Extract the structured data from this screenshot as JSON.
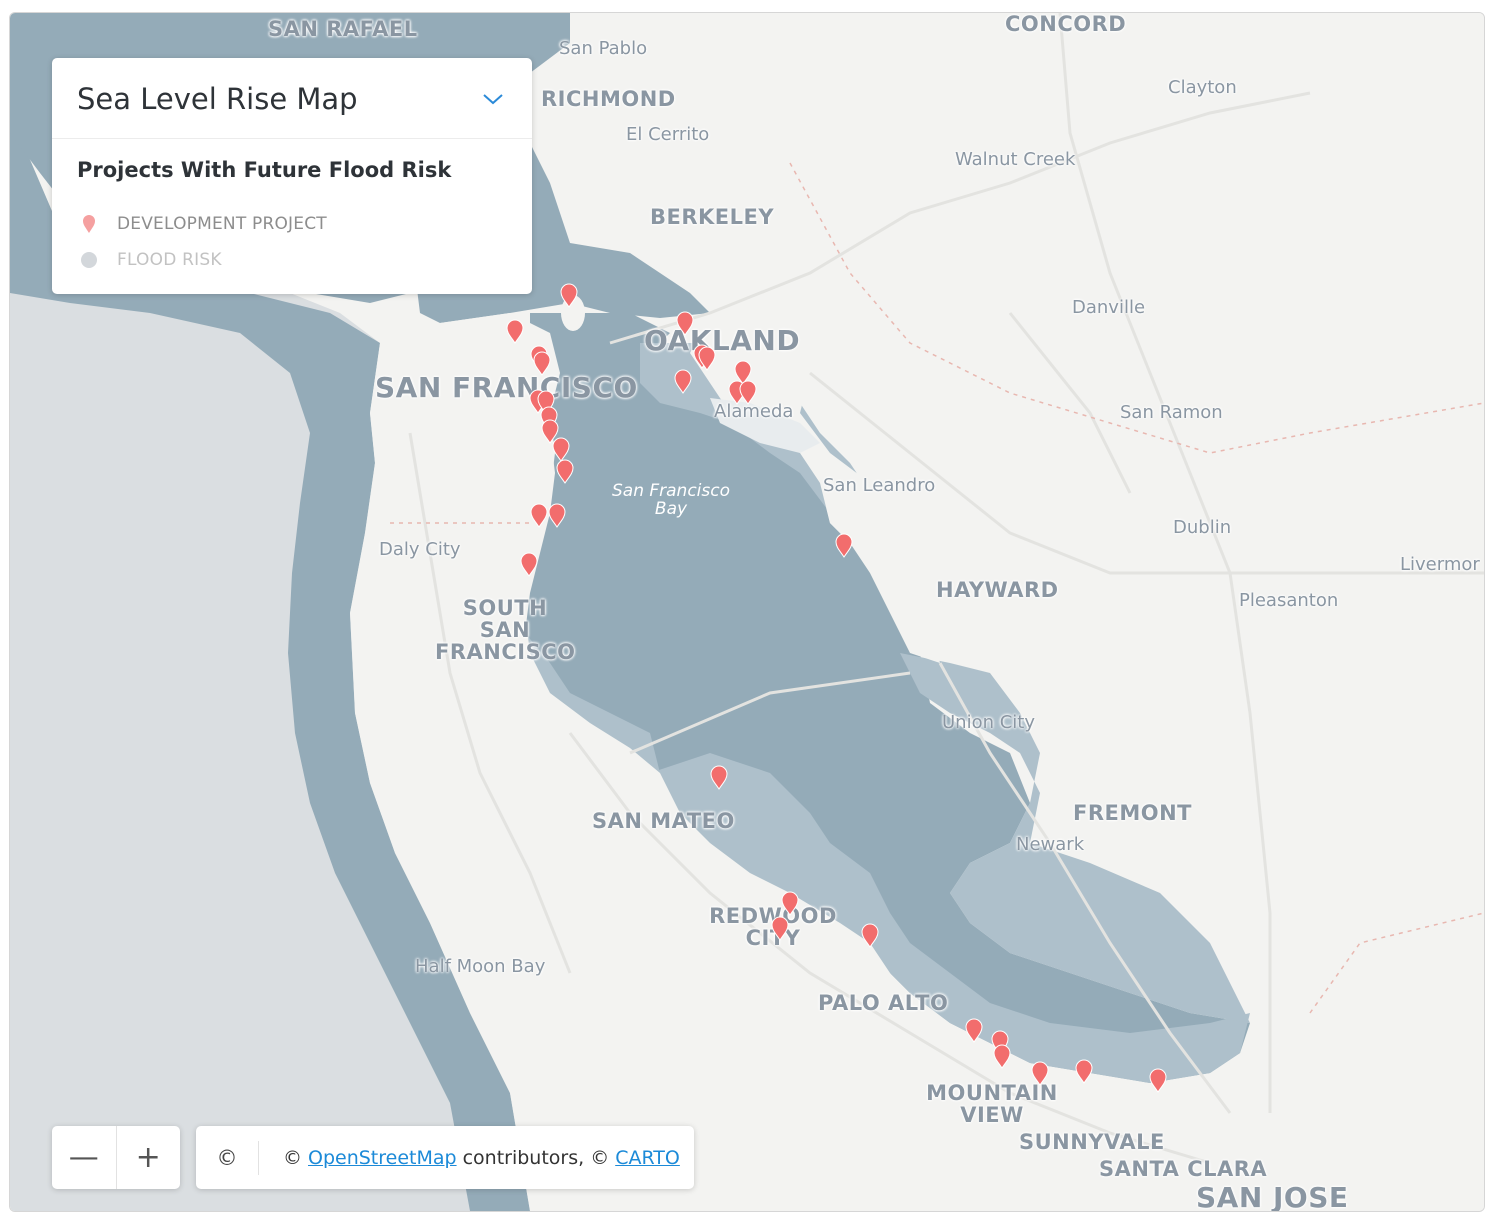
{
  "legend": {
    "title": "Sea Level Rise Map",
    "subtitle": "Projects With Future Flood Risk",
    "items": [
      {
        "label": "DEVELOPMENT PROJECT",
        "icon": "pin-icon",
        "color": "#f26d6d"
      },
      {
        "label": "FLOOD RISK",
        "icon": "circle-icon",
        "color": "#d3d7db"
      }
    ]
  },
  "zoom": {
    "out_label": "—",
    "in_label": "+"
  },
  "attribution": {
    "icon": "©",
    "prefix": "©",
    "osm_link": "OpenStreetMap",
    "middle": "contributors, ©",
    "carto_link": "CARTO"
  },
  "map_labels": {
    "san_rafael": "SAN RAFAEL",
    "san_pablo": "San Pablo",
    "concord": "CONCORD",
    "clayton": "Clayton",
    "richmond": "RICHMOND",
    "el_cerrito": "El Cerrito",
    "walnut_creek": "Walnut Creek",
    "berkeley": "BERKELEY",
    "danville": "Danville",
    "oakland": "OAKLAND",
    "san_francisco": "SAN FRANCISCO",
    "alameda": "Alameda",
    "san_ramon": "San Ramon",
    "sf_bay": "San Francisco Bay",
    "san_leandro": "San Leandro",
    "dublin": "Dublin",
    "daly_city": "Daly City",
    "livermore": "Livermor",
    "hayward": "HAYWARD",
    "pleasanton": "Pleasanton",
    "south_sf": "SOUTH SAN FRANCISCO",
    "union_city": "Union City",
    "fremont": "FREMONT",
    "san_mateo": "SAN MATEO",
    "newark": "Newark",
    "redwood_city": "REDWOOD CITY",
    "half_moon_bay": "Half Moon Bay",
    "palo_alto": "PALO ALTO",
    "mountain_view": "MOUNTAIN VIEW",
    "sunnyvale": "SUNNYVALE",
    "santa_clara": "SANTA CLARA",
    "san_jose": "SAN JOSE"
  },
  "colors": {
    "water": "#94abb8",
    "flood_risk": "#aec0cb",
    "land": "#f3f3f1",
    "marker": "#f26d6d",
    "label": "#8a96a2"
  }
}
